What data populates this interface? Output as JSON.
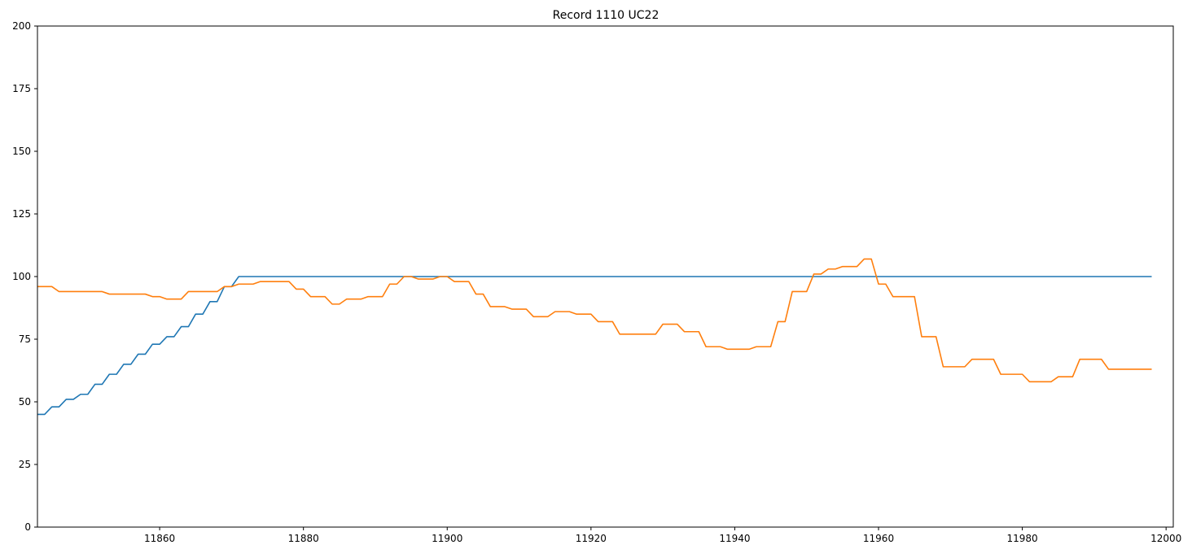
{
  "chart_data": {
    "type": "line",
    "title": "Record 1110 UC22",
    "xlabel": "",
    "ylabel": "",
    "xlim": [
      11843,
      12001
    ],
    "ylim": [
      0,
      200
    ],
    "xticks": [
      11860,
      11880,
      11900,
      11920,
      11940,
      11960,
      11980,
      12000
    ],
    "yticks": [
      0,
      25,
      50,
      75,
      100,
      125,
      150,
      175,
      200
    ],
    "grid": false,
    "legend": "none",
    "series": [
      {
        "color": "#1f77b4",
        "points": [
          [
            11843,
            45
          ],
          [
            11844,
            45
          ],
          [
            11845,
            48
          ],
          [
            11846,
            48
          ],
          [
            11847,
            51
          ],
          [
            11848,
            51
          ],
          [
            11849,
            53
          ],
          [
            11850,
            53
          ],
          [
            11851,
            57
          ],
          [
            11852,
            57
          ],
          [
            11853,
            61
          ],
          [
            11854,
            61
          ],
          [
            11855,
            65
          ],
          [
            11856,
            65
          ],
          [
            11857,
            69
          ],
          [
            11858,
            69
          ],
          [
            11859,
            73
          ],
          [
            11860,
            73
          ],
          [
            11861,
            76
          ],
          [
            11862,
            76
          ],
          [
            11863,
            80
          ],
          [
            11864,
            80
          ],
          [
            11865,
            85
          ],
          [
            11866,
            85
          ],
          [
            11867,
            90
          ],
          [
            11868,
            90
          ],
          [
            11869,
            96
          ],
          [
            11870,
            96
          ],
          [
            11871,
            100
          ],
          [
            11998,
            100
          ]
        ]
      },
      {
        "color": "#ff7f0e",
        "points": [
          [
            11843,
            96
          ],
          [
            11845,
            96
          ],
          [
            11846,
            94
          ],
          [
            11852,
            94
          ],
          [
            11853,
            93
          ],
          [
            11858,
            93
          ],
          [
            11859,
            92
          ],
          [
            11860,
            92
          ],
          [
            11861,
            91
          ],
          [
            11863,
            91
          ],
          [
            11864,
            94
          ],
          [
            11868,
            94
          ],
          [
            11869,
            96
          ],
          [
            11870,
            96
          ],
          [
            11871,
            97
          ],
          [
            11873,
            97
          ],
          [
            11874,
            98
          ],
          [
            11878,
            98
          ],
          [
            11879,
            95
          ],
          [
            11880,
            95
          ],
          [
            11881,
            92
          ],
          [
            11883,
            92
          ],
          [
            11884,
            89
          ],
          [
            11885,
            89
          ],
          [
            11886,
            91
          ],
          [
            11888,
            91
          ],
          [
            11889,
            92
          ],
          [
            11891,
            92
          ],
          [
            11892,
            97
          ],
          [
            11893,
            97
          ],
          [
            11894,
            100
          ],
          [
            11895,
            100
          ],
          [
            11896,
            99
          ],
          [
            11898,
            99
          ],
          [
            11899,
            100
          ],
          [
            11900,
            100
          ],
          [
            11901,
            98
          ],
          [
            11903,
            98
          ],
          [
            11904,
            93
          ],
          [
            11905,
            93
          ],
          [
            11906,
            88
          ],
          [
            11908,
            88
          ],
          [
            11909,
            87
          ],
          [
            11911,
            87
          ],
          [
            11912,
            84
          ],
          [
            11914,
            84
          ],
          [
            11915,
            86
          ],
          [
            11917,
            86
          ],
          [
            11918,
            85
          ],
          [
            11920,
            85
          ],
          [
            11921,
            82
          ],
          [
            11923,
            82
          ],
          [
            11924,
            77
          ],
          [
            11929,
            77
          ],
          [
            11930,
            81
          ],
          [
            11932,
            81
          ],
          [
            11933,
            78
          ],
          [
            11935,
            78
          ],
          [
            11936,
            72
          ],
          [
            11938,
            72
          ],
          [
            11939,
            71
          ],
          [
            11942,
            71
          ],
          [
            11943,
            72
          ],
          [
            11945,
            72
          ],
          [
            11946,
            82
          ],
          [
            11947,
            82
          ],
          [
            11948,
            94
          ],
          [
            11950,
            94
          ],
          [
            11951,
            101
          ],
          [
            11952,
            101
          ],
          [
            11953,
            103
          ],
          [
            11954,
            103
          ],
          [
            11955,
            104
          ],
          [
            11957,
            104
          ],
          [
            11958,
            107
          ],
          [
            11959,
            107
          ],
          [
            11960,
            97
          ],
          [
            11961,
            97
          ],
          [
            11962,
            92
          ],
          [
            11965,
            92
          ],
          [
            11966,
            76
          ],
          [
            11968,
            76
          ],
          [
            11969,
            64
          ],
          [
            11972,
            64
          ],
          [
            11973,
            67
          ],
          [
            11976,
            67
          ],
          [
            11977,
            61
          ],
          [
            11980,
            61
          ],
          [
            11981,
            58
          ],
          [
            11984,
            58
          ],
          [
            11985,
            60
          ],
          [
            11987,
            60
          ],
          [
            11988,
            67
          ],
          [
            11991,
            67
          ],
          [
            11992,
            63
          ],
          [
            11998,
            63
          ]
        ]
      }
    ]
  }
}
